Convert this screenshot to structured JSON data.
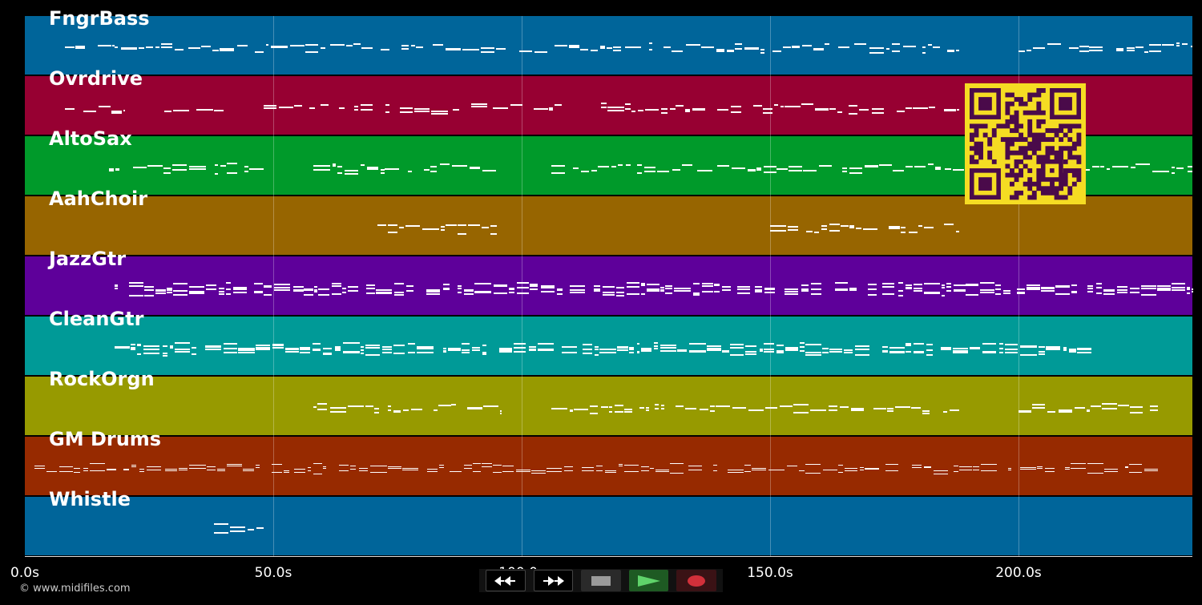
{
  "tracks": [
    {
      "name": "FngrBass",
      "color": "#00659a"
    },
    {
      "name": "Ovrdrive",
      "color": "#970032"
    },
    {
      "name": "AltoSax",
      "color": "#009a2a"
    },
    {
      "name": "AahChoir",
      "color": "#976500"
    },
    {
      "name": "JazzGtr",
      "color": "#5e009a"
    },
    {
      "name": "CleanGtr",
      "color": "#009a97"
    },
    {
      "name": "RockOrgn",
      "color": "#979a00"
    },
    {
      "name": "GM Drums",
      "color": "#972a00"
    },
    {
      "name": "Whistle",
      "color": "#00659a"
    }
  ],
  "timeline": {
    "ticks": [
      "0.0s",
      "50.0s",
      "100.0s",
      "150.0s",
      "200.0s"
    ],
    "tick_seconds": [
      0,
      50,
      100,
      150,
      200
    ],
    "end_seconds": 235
  },
  "copyright": "© www.midifiles.com",
  "transport": {
    "rewind": "rewind-icon",
    "fast_forward": "fast-forward-icon",
    "stop": "stop-icon",
    "play": "play-icon",
    "record": "record-icon",
    "play_color": "#5fd36a",
    "record_color": "#d1303a"
  },
  "qr_code": {
    "colors": {
      "fg": "#4a0a4a",
      "bg": "#f5dc23"
    }
  }
}
